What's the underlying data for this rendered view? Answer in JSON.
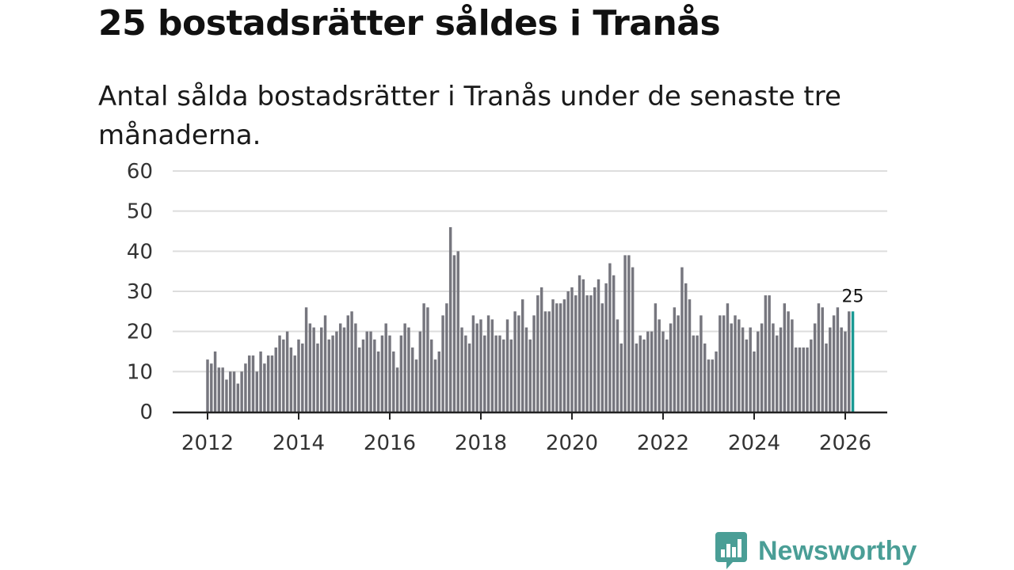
{
  "header": {
    "title": "25 bostadsrätter såldes i Tranås",
    "subtitle": "Antal sålda bostadsrätter i Tranås under de senaste tre månaderna."
  },
  "brand": {
    "name": "Newsworthy"
  },
  "colors": {
    "bar": "#76767e",
    "highlight": "#1a9a94",
    "grid": "#dddddd",
    "axis": "#222222",
    "brand": "#4a9e96"
  },
  "chart_data": {
    "type": "bar",
    "title": "25 bostadsrätter såldes i Tranås",
    "xlabel": "",
    "ylabel": "",
    "ylim": [
      0,
      60
    ],
    "yticks": [
      0,
      10,
      20,
      30,
      40,
      50,
      60
    ],
    "xticks": [
      2012,
      2014,
      2016,
      2018,
      2020,
      2022,
      2024,
      2026
    ],
    "x_start": 2012.0,
    "x_step": 0.08333,
    "grid": true,
    "highlight_last": true,
    "last_value_label": "25",
    "values": [
      13,
      12,
      15,
      11,
      11,
      8,
      10,
      10,
      7,
      10,
      12,
      14,
      14,
      10,
      15,
      12,
      14,
      14,
      16,
      19,
      18,
      20,
      16,
      14,
      18,
      17,
      26,
      22,
      21,
      17,
      21,
      24,
      18,
      19,
      20,
      22,
      21,
      24,
      25,
      22,
      16,
      18,
      20,
      20,
      18,
      15,
      19,
      22,
      19,
      15,
      11,
      19,
      22,
      21,
      16,
      13,
      20,
      27,
      26,
      18,
      13,
      15,
      24,
      27,
      46,
      39,
      40,
      21,
      19,
      17,
      24,
      22,
      23,
      19,
      24,
      23,
      19,
      19,
      18,
      23,
      18,
      25,
      24,
      28,
      21,
      18,
      24,
      29,
      31,
      25,
      25,
      28,
      27,
      27,
      28,
      30,
      31,
      29,
      34,
      33,
      29,
      29,
      31,
      33,
      27,
      32,
      37,
      34,
      23,
      17,
      39,
      39,
      36,
      17,
      19,
      18,
      20,
      20,
      27,
      23,
      20,
      18,
      22,
      26,
      24,
      36,
      32,
      28,
      19,
      19,
      24,
      17,
      13,
      13,
      15,
      24,
      24,
      27,
      22,
      24,
      23,
      21,
      18,
      21,
      15,
      20,
      22,
      29,
      29,
      22,
      19,
      21,
      27,
      25,
      23,
      16,
      16,
      16,
      16,
      18,
      22,
      27,
      26,
      17,
      21,
      24,
      26,
      21,
      20,
      25,
      25
    ]
  }
}
